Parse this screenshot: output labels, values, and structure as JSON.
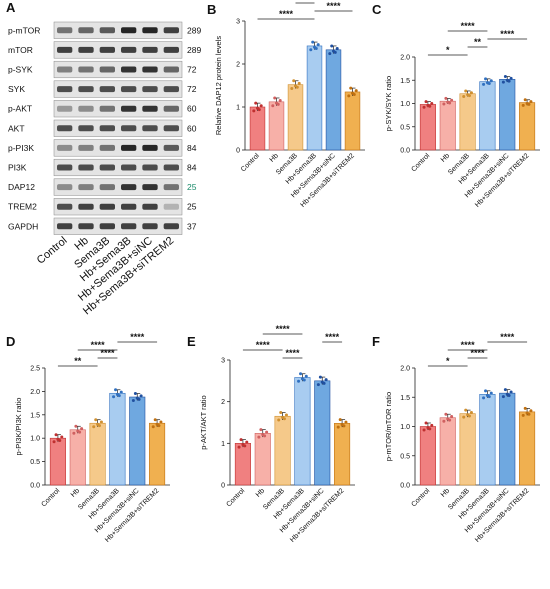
{
  "figure": {
    "western_blot": {
      "letter": "A",
      "rows": [
        {
          "label": "p-mTOR",
          "kda": "289"
        },
        {
          "label": "mTOR",
          "kda": "289"
        },
        {
          "label": "p-SYK",
          "kda": "72"
        },
        {
          "label": "SYK",
          "kda": "72"
        },
        {
          "label": "p-AKT",
          "kda": "60"
        },
        {
          "label": "AKT",
          "kda": "60"
        },
        {
          "label": "p-PI3K",
          "kda": "84"
        },
        {
          "label": "PI3K",
          "kda": "84"
        },
        {
          "label": "DAP12",
          "kda": "25"
        },
        {
          "label": "TREM2",
          "kda": "25"
        },
        {
          "label": "GAPDH",
          "kda": "37"
        }
      ],
      "lanes": [
        "Control",
        "Hb",
        "Sema3B",
        "Hb+Sema3B",
        "Hb+Sema3B+siNC",
        "Hb+Sema3B+siTREM2"
      ],
      "band_intensity": [
        [
          0.55,
          0.6,
          0.65,
          0.85,
          0.85,
          0.75
        ],
        [
          0.75,
          0.75,
          0.75,
          0.75,
          0.75,
          0.75
        ],
        [
          0.5,
          0.55,
          0.6,
          0.8,
          0.8,
          0.6
        ],
        [
          0.7,
          0.7,
          0.7,
          0.7,
          0.7,
          0.7
        ],
        [
          0.4,
          0.45,
          0.55,
          0.8,
          0.8,
          0.6
        ],
        [
          0.7,
          0.7,
          0.7,
          0.7,
          0.7,
          0.7
        ],
        [
          0.45,
          0.5,
          0.55,
          0.85,
          0.85,
          0.65
        ],
        [
          0.7,
          0.7,
          0.7,
          0.7,
          0.7,
          0.7
        ],
        [
          0.45,
          0.5,
          0.55,
          0.8,
          0.8,
          0.55
        ],
        [
          0.7,
          0.75,
          0.75,
          0.75,
          0.75,
          0.3
        ],
        [
          0.75,
          0.75,
          0.75,
          0.75,
          0.75,
          0.75
        ]
      ],
      "colors": {
        "dap12_kda": "#1a8a6a"
      }
    }
  },
  "chart_data": [
    {
      "letter": "B",
      "type": "bar",
      "ylabel": "Relative DAP12 protein levels",
      "ylim": [
        0,
        3
      ],
      "yticks": [
        "0",
        "1",
        "2",
        "3"
      ],
      "categories": [
        "Control",
        "Hb",
        "Sema3B",
        "Hb+Sema3B",
        "Hb+Sema3B+siNC",
        "Hb+Sema3B+siTREM2"
      ],
      "values": [
        1.0,
        1.12,
        1.52,
        2.42,
        2.33,
        1.35
      ],
      "significance": [
        {
          "from": 0,
          "to": 3,
          "label": "****"
        },
        {
          "from": 3,
          "to": 5,
          "label": "****"
        },
        {
          "from": 2,
          "to": 3,
          "label": "****"
        },
        {
          "from": 0,
          "to": 4,
          "label": "****"
        }
      ]
    },
    {
      "letter": "C",
      "type": "bar",
      "ylabel": "p-SYK/SYK ratio",
      "ylim": [
        0,
        2
      ],
      "yticks": [
        "0.0",
        "0.5",
        "1.0",
        "1.5",
        "2.0"
      ],
      "categories": [
        "Control",
        "Hb",
        "Sema3B",
        "Hb+Sema3B",
        "Hb+Sema3B+siNC",
        "Hb+Sema3B+siTREM2"
      ],
      "values": [
        0.98,
        1.05,
        1.21,
        1.47,
        1.52,
        1.02
      ],
      "significance": [
        {
          "from": 0,
          "to": 2,
          "label": "*"
        },
        {
          "from": 2,
          "to": 3,
          "label": "**"
        },
        {
          "from": 3,
          "to": 5,
          "label": "****"
        },
        {
          "from": 1,
          "to": 3,
          "label": "****"
        }
      ]
    },
    {
      "letter": "D",
      "type": "bar",
      "ylabel": "p-PI3K/PI3K ratio",
      "ylim": [
        0,
        2.5
      ],
      "yticks": [
        "0.0",
        "0.5",
        "1.0",
        "1.5",
        "2.0",
        "2.5"
      ],
      "categories": [
        "Control",
        "Hb",
        "Sema3B",
        "Hb+Sema3B",
        "Hb+Sema3B+siNC",
        "Hb+Sema3B+siTREM2"
      ],
      "values": [
        1.0,
        1.18,
        1.32,
        1.96,
        1.88,
        1.32
      ],
      "significance": [
        {
          "from": 0,
          "to": 2,
          "label": "**"
        },
        {
          "from": 2,
          "to": 3,
          "label": "****"
        },
        {
          "from": 1,
          "to": 3,
          "label": "****"
        },
        {
          "from": 3,
          "to": 5,
          "label": "****"
        }
      ]
    },
    {
      "letter": "E",
      "type": "bar",
      "ylabel": "p-AKT/AKT ratio",
      "ylim": [
        0,
        3
      ],
      "yticks": [
        "0",
        "1",
        "2",
        "3"
      ],
      "categories": [
        "Control",
        "Hb",
        "Sema3B",
        "Hb+Sema3B",
        "Hb+Sema3B+siNC",
        "Hb+Sema3B+siTREM2"
      ],
      "values": [
        1.0,
        1.24,
        1.65,
        2.58,
        2.5,
        1.48
      ],
      "significance": [
        {
          "from": 2,
          "to": 3,
          "label": "****"
        },
        {
          "from": 0,
          "to": 2,
          "label": "****"
        },
        {
          "from": 4,
          "to": 5,
          "label": "****"
        },
        {
          "from": 1,
          "to": 3,
          "label": "****"
        }
      ]
    },
    {
      "letter": "F",
      "type": "bar",
      "ylabel": "p-mTOR/mTOR ratio",
      "ylim": [
        0,
        2
      ],
      "yticks": [
        "0.0",
        "0.5",
        "1.0",
        "1.5",
        "2.0"
      ],
      "categories": [
        "Control",
        "Hb",
        "Sema3B",
        "Hb+Sema3B",
        "Hb+Sema3B+siNC",
        "Hb+Sema3B+siTREM2"
      ],
      "values": [
        1.0,
        1.15,
        1.22,
        1.55,
        1.57,
        1.25
      ],
      "significance": [
        {
          "from": 0,
          "to": 2,
          "label": "*"
        },
        {
          "from": 2,
          "to": 3,
          "label": "****"
        },
        {
          "from": 1,
          "to": 3,
          "label": "****"
        },
        {
          "from": 3,
          "to": 5,
          "label": "****"
        }
      ]
    }
  ],
  "bar_colors": [
    "#f08080",
    "#f7b0a8",
    "#f5c98a",
    "#a8ccf0",
    "#6fa8e0",
    "#f0b050"
  ],
  "dot_colors": [
    "#c03030",
    "#d06060",
    "#d09030",
    "#3070c0",
    "#2050a0",
    "#c07010"
  ]
}
